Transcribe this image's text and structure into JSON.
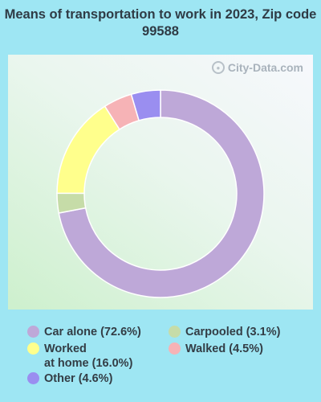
{
  "title": "Means of transportation to work in 2023, Zip code 99588",
  "watermark": "City-Data.com",
  "chart_data": {
    "type": "pie",
    "variant": "donut",
    "title": "Means of transportation to work in 2023, Zip code 99588",
    "slices": [
      {
        "label": "Car alone",
        "value": 72.6,
        "legend": "Car alone (72.6%)",
        "color": "#bea8d8"
      },
      {
        "label": "Carpooled",
        "value": 3.1,
        "legend": "Carpooled (3.1%)",
        "color": "#c6dca8"
      },
      {
        "label": "Worked at home",
        "value": 16.0,
        "legend": "Worked\nat home (16.0%)",
        "color": "#ffff8c"
      },
      {
        "label": "Walked",
        "value": 4.5,
        "legend": "Walked (4.5%)",
        "color": "#f6b3b6"
      },
      {
        "label": "Other",
        "value": 4.6,
        "legend": "Other (4.6%)",
        "color": "#9a8ef0"
      }
    ],
    "legend_position": "bottom"
  }
}
